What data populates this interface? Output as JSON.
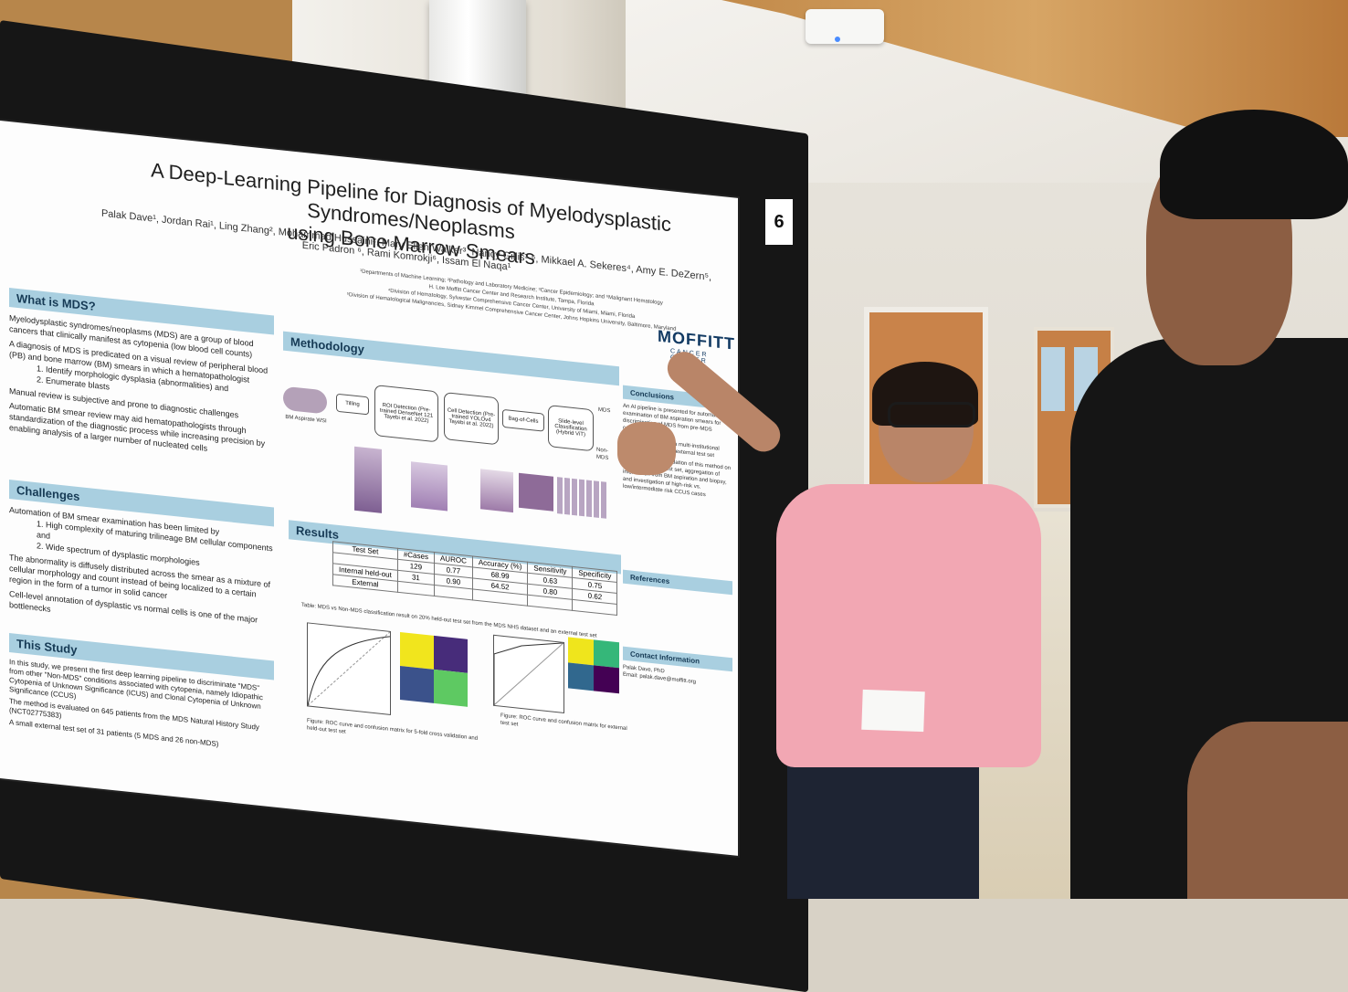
{
  "board_number": "6",
  "poster": {
    "title_line1": "A Deep-Learning Pipeline for Diagnosis of Myelodysplastic Syndromes/Neoplasms",
    "title_line2": "using Bone Marrow Smears",
    "authors": "Palak Dave¹, Jordan Rai¹, Ling Zhang², Mohammad Hussaini², Mary Ellen Walker³, Nancy Gillis³·⁶, Mikkael A. Sekeres⁴, Amy E. DeZern⁵, Eric Padron ⁶, Rami Komrokji⁶, Issam El Naqa¹",
    "affiliations": [
      "¹Departments of Machine Learning; ²Pathology and Laboratory Medicine; ³Cancer Epidemiology; and ⁶Malignant Hematology",
      "H. Lee Moffitt Cancer Center and Research Institute, Tampa, Florida",
      "⁴Division of Hematology, Sylvester Comprehensive Cancer Center, University of Miami, Miami, Florida",
      "⁵Division of Hematological Malignancies, Sidney Kimmel Comprehensive Cancer Center, Johns Hopkins University, Baltimore, Maryland"
    ],
    "logo_main": "MOFFITT",
    "logo_sub": "CANCER CENTER",
    "sections": {
      "what_is_mds": {
        "heading": "What is MDS?",
        "bullets": [
          "Myelodysplastic syndromes/neoplasms (MDS) are a group of blood cancers that clinically manifest as cytopenia (low blood cell counts)",
          "A diagnosis of MDS is predicated on a visual review of peripheral blood (PB) and bone marrow (BM) smears in which a hematopathologist",
          "1. Identify morphologic dysplasia (abnormalities) and",
          "2. Enumerate blasts",
          "Manual review is subjective and prone to diagnostic challenges",
          "Automatic BM smear review may aid hematopathologists through standardization of the diagnostic process while increasing precision by enabling analysis of a larger number of nucleated cells"
        ]
      },
      "challenges": {
        "heading": "Challenges",
        "bullets": [
          "Automation of BM smear examination has been limited by",
          "1. High complexity of maturing trilineage BM cellular components and",
          "2. Wide spectrum of dysplastic morphologies",
          "The abnormality is diffusely distributed across the smear as a mixture of cellular morphology and count instead of being localized to a certain region in the form of a tumor in solid cancer",
          "Cell-level annotation of dysplastic vs normal cells is one of the major bottlenecks"
        ]
      },
      "this_study": {
        "heading": "This Study",
        "bullets": [
          "In this study, we present the first deep learning pipeline to discriminate \"MDS\" from other \"Non-MDS\" conditions associated with cytopenia, namely Idiopathic Cytopenia of Unknown Significance (ICUS) and Clonal Cytopenia of Unknown Significance (CCUS)",
          "The method is evaluated on 645 patients from the MDS Natural History Study (NCT02775383)",
          "A small external test set of 31 patients (5 MDS and 26 non-MDS)"
        ]
      },
      "methodology": {
        "heading": "Methodology",
        "flow": [
          "BM Aspirate WSI",
          "Tilling",
          "ROI Detection (Pre-trained DenseNet 121 Tayebi et al. 2022)",
          "Cell Detection (Pre-trained YOLOv4 Tayebi et al. 2022)",
          "Bag-of-Cells",
          "Slide-level Classification (Hybrid ViT)",
          "MDS",
          "Non-MDS"
        ]
      },
      "results": {
        "heading": "Results",
        "table_headers": [
          "Test Set",
          "#Cases",
          "AUROC",
          "Accuracy (%)",
          "Sensitivity",
          "Specificity"
        ],
        "table_rows": [
          [
            "",
            "129",
            "0.77",
            "68.99",
            "0.63",
            "0.75"
          ],
          [
            "Internal held-out",
            "31",
            "0.90",
            "64.52",
            "0.80",
            "0.62"
          ],
          [
            "External",
            "",
            "",
            "",
            "",
            ""
          ]
        ],
        "table_caption": "Table: MDS vs Non-MDS classification result on 20% held-out test set from the MDS NHS dataset and an external test set",
        "fig1_caption": "Figure: ROC curve and confusion matrix for 5-fold cross validation and held-out test set",
        "fig2_caption": "Figure: ROC curve and confusion matrix for external test set"
      },
      "conclusions": {
        "heading": "Conclusions",
        "bullets": [
          "An AI pipeline is presented for automatic examination of BM aspiration smears for discrimination of MDS from pre-MDS conditions",
          "Promising results on a multi-institutional dataset as well as an external test set",
          "Future direction: validation of this method on a larger external test set, aggregation of information from BM aspiration and biopsy, and investigation of high-risk vs. low/intermediate risk CCUS cases"
        ]
      },
      "references": {
        "heading": "References"
      },
      "contact": {
        "heading": "Contact Information",
        "name": "Palak Dave, PhD",
        "email": "Email: palak.dave@moffitt.org"
      }
    }
  }
}
